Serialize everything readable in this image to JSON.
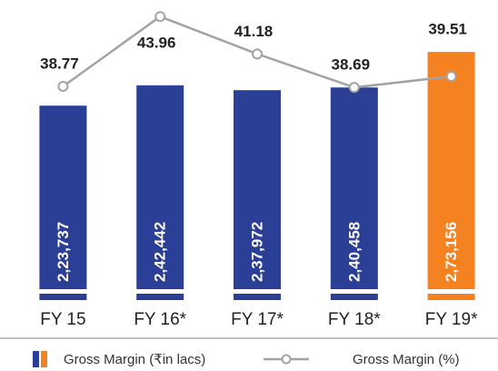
{
  "chart_data": {
    "type": "bar-line",
    "categories": [
      "FY 15",
      "FY 16*",
      "FY 17*",
      "FY 18*",
      "FY 19*"
    ],
    "series": [
      {
        "name": "Gross Margin (₹in lacs)",
        "type": "bar",
        "color": "#2b3f96",
        "colors": [
          "#2b3f96",
          "#2b3f96",
          "#2b3f96",
          "#2b3f96",
          "#f58220"
        ],
        "values": [
          223737,
          242442,
          237972,
          240458,
          273156
        ],
        "value_labels": [
          "2,23,737",
          "2,42,442",
          "2,37,972",
          "2,40,458",
          "2,73,156"
        ]
      },
      {
        "name": "Gross Margin (%)",
        "type": "line",
        "axis": "y2",
        "color": "#a3a3a3",
        "values": [
          38.77,
          43.96,
          41.18,
          38.69,
          39.51
        ],
        "value_labels": [
          "38.77",
          "43.96",
          "41.18",
          "38.69",
          "39.51"
        ]
      }
    ],
    "ylim": [
      55000,
      300000
    ],
    "y2lim": [
      23.7,
      43.5
    ],
    "grid": false
  }
}
